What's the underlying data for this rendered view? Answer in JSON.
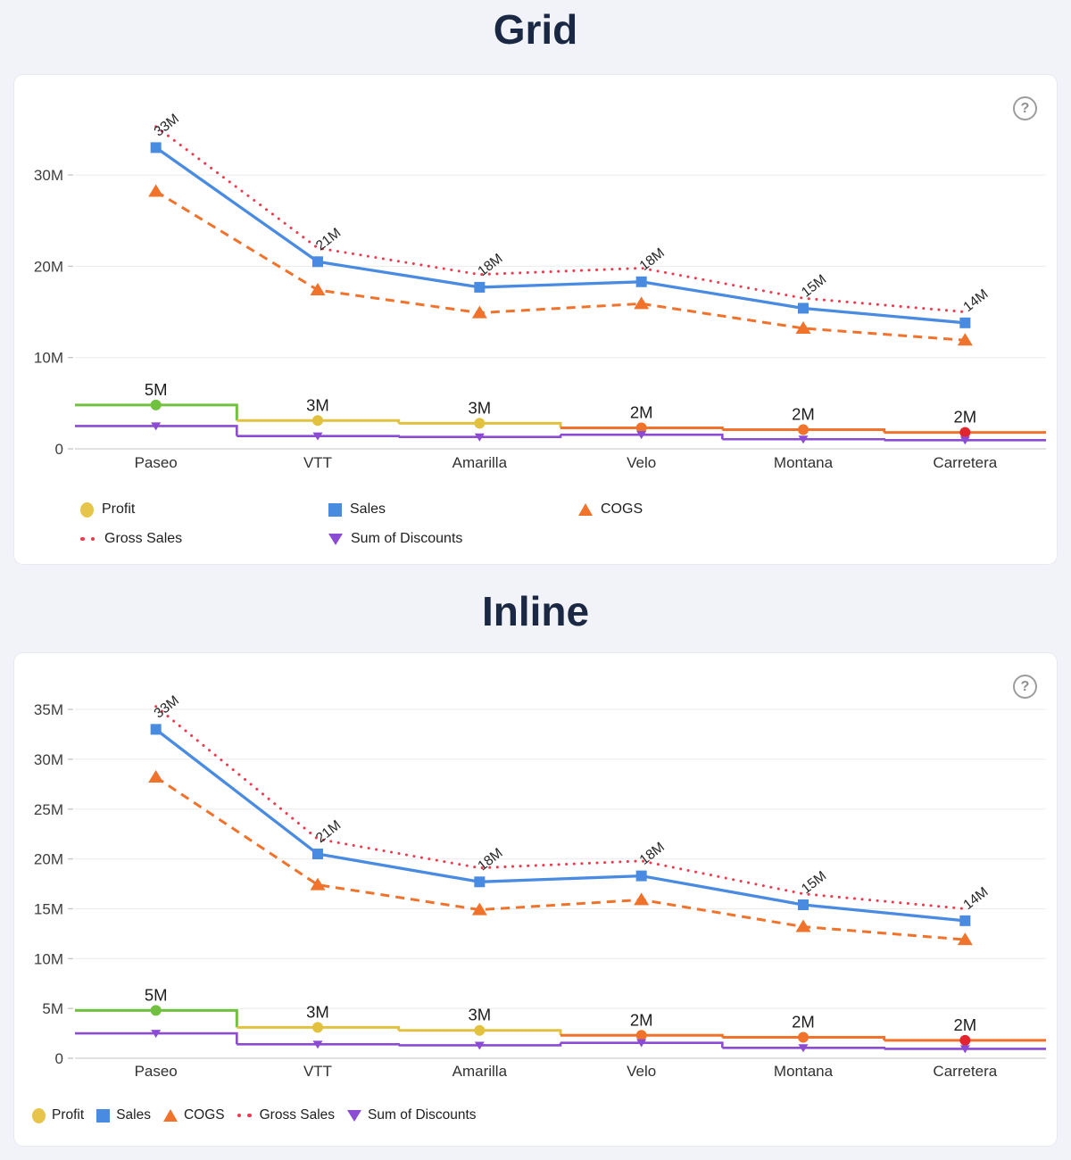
{
  "help_glyph": "?",
  "chart_data": [
    {
      "id": "grid",
      "type": "line",
      "title": "Grid",
      "legend_layout": "grid",
      "categories": [
        "Paseo",
        "VTT",
        "Amarilla",
        "Velo",
        "Montana",
        "Carretera"
      ],
      "y_ticks": [
        {
          "value": 0,
          "label": "0"
        },
        {
          "value": 10,
          "label": "10M"
        },
        {
          "value": 20,
          "label": "20M"
        },
        {
          "value": 30,
          "label": "30M"
        }
      ],
      "ylim_millions": [
        0,
        38
      ],
      "grid_on": true,
      "series": [
        {
          "name": "Profit",
          "style": "step",
          "marker": "circle",
          "values_millions": [
            4.8,
            3.1,
            2.8,
            2.3,
            2.1,
            1.8
          ],
          "labels": [
            "5M",
            "3M",
            "3M",
            "2M",
            "2M",
            "2M"
          ],
          "segment_colors": [
            "#70C13E",
            "#E2C13F",
            "#E2C13F",
            "#F0722B",
            "#F0722B",
            "#F0722B"
          ],
          "marker_colors": [
            "#70C13E",
            "#E2C13F",
            "#E2C13F",
            "#F0722B",
            "#F0722B",
            "#E1242E"
          ]
        },
        {
          "name": "Sales",
          "style": "solid",
          "marker": "square",
          "color": "#4A8BE2",
          "values_millions": [
            33.0,
            20.5,
            17.7,
            18.3,
            15.4,
            13.8
          ],
          "labels": [
            "33M",
            "21M",
            "18M",
            "18M",
            "15M",
            "14M"
          ],
          "labels_rotated": true
        },
        {
          "name": "COGS",
          "style": "dashed",
          "marker": "triangle-up",
          "color": "#F0722B",
          "values_millions": [
            28.2,
            17.4,
            14.9,
            15.9,
            13.2,
            11.9
          ]
        },
        {
          "name": "Gross Sales",
          "style": "dotted",
          "marker": "none",
          "color": "#EE3A4E",
          "values_millions": [
            35.3,
            22.0,
            19.1,
            19.8,
            16.5,
            15.0
          ]
        },
        {
          "name": "Sum of Discounts",
          "style": "step",
          "marker": "triangle-down",
          "color": "#8B4BD3",
          "values_millions": [
            2.5,
            1.4,
            1.3,
            1.55,
            1.05,
            0.95
          ]
        }
      ],
      "legend": [
        {
          "label": "Profit",
          "marker": "circle",
          "color": "#E7C44A"
        },
        {
          "label": "Sales",
          "marker": "square",
          "color": "#4A8BE2"
        },
        {
          "label": "COGS",
          "marker": "triangle-up",
          "color": "#F0722B"
        },
        {
          "label": "Gross Sales",
          "marker": "dots",
          "color": "#EE3A4E"
        },
        {
          "label": "Sum of Discounts",
          "marker": "triangle-down",
          "color": "#8B4BD3"
        }
      ]
    },
    {
      "id": "inline",
      "type": "line",
      "title": "Inline",
      "legend_layout": "inline",
      "categories": [
        "Paseo",
        "VTT",
        "Amarilla",
        "Velo",
        "Montana",
        "Carretera"
      ],
      "y_ticks": [
        {
          "value": 0,
          "label": "0"
        },
        {
          "value": 5,
          "label": "5M"
        },
        {
          "value": 10,
          "label": "10M"
        },
        {
          "value": 15,
          "label": "15M"
        },
        {
          "value": 20,
          "label": "20M"
        },
        {
          "value": 25,
          "label": "25M"
        },
        {
          "value": 30,
          "label": "30M"
        },
        {
          "value": 35,
          "label": "35M"
        }
      ],
      "ylim_millions": [
        0,
        36.5
      ],
      "grid_on": true,
      "series": [
        {
          "name": "Profit",
          "style": "step",
          "marker": "circle",
          "values_millions": [
            4.8,
            3.1,
            2.8,
            2.3,
            2.1,
            1.8
          ],
          "labels": [
            "5M",
            "3M",
            "3M",
            "2M",
            "2M",
            "2M"
          ],
          "segment_colors": [
            "#70C13E",
            "#E2C13F",
            "#E2C13F",
            "#F0722B",
            "#F0722B",
            "#F0722B"
          ],
          "marker_colors": [
            "#70C13E",
            "#E2C13F",
            "#E2C13F",
            "#F0722B",
            "#F0722B",
            "#E1242E"
          ]
        },
        {
          "name": "Sales",
          "style": "solid",
          "marker": "square",
          "color": "#4A8BE2",
          "values_millions": [
            33.0,
            20.5,
            17.7,
            18.3,
            15.4,
            13.8
          ],
          "labels": [
            "33M",
            "21M",
            "18M",
            "18M",
            "15M",
            "14M"
          ],
          "labels_rotated": true
        },
        {
          "name": "COGS",
          "style": "dashed",
          "marker": "triangle-up",
          "color": "#F0722B",
          "values_millions": [
            28.2,
            17.4,
            14.9,
            15.9,
            13.2,
            11.9
          ]
        },
        {
          "name": "Gross Sales",
          "style": "dotted",
          "marker": "none",
          "color": "#EE3A4E",
          "values_millions": [
            35.3,
            22.0,
            19.1,
            19.8,
            16.5,
            15.0
          ]
        },
        {
          "name": "Sum of Discounts",
          "style": "step",
          "marker": "triangle-down",
          "color": "#8B4BD3",
          "values_millions": [
            2.5,
            1.4,
            1.3,
            1.55,
            1.05,
            0.95
          ]
        }
      ],
      "legend": [
        {
          "label": "Profit",
          "marker": "circle",
          "color": "#E7C44A"
        },
        {
          "label": "Sales",
          "marker": "square",
          "color": "#4A8BE2"
        },
        {
          "label": "COGS",
          "marker": "triangle-up",
          "color": "#F0722B"
        },
        {
          "label": "Gross Sales",
          "marker": "dots",
          "color": "#EE3A4E"
        },
        {
          "label": "Sum of Discounts",
          "marker": "triangle-down",
          "color": "#8B4BD3"
        }
      ]
    }
  ]
}
